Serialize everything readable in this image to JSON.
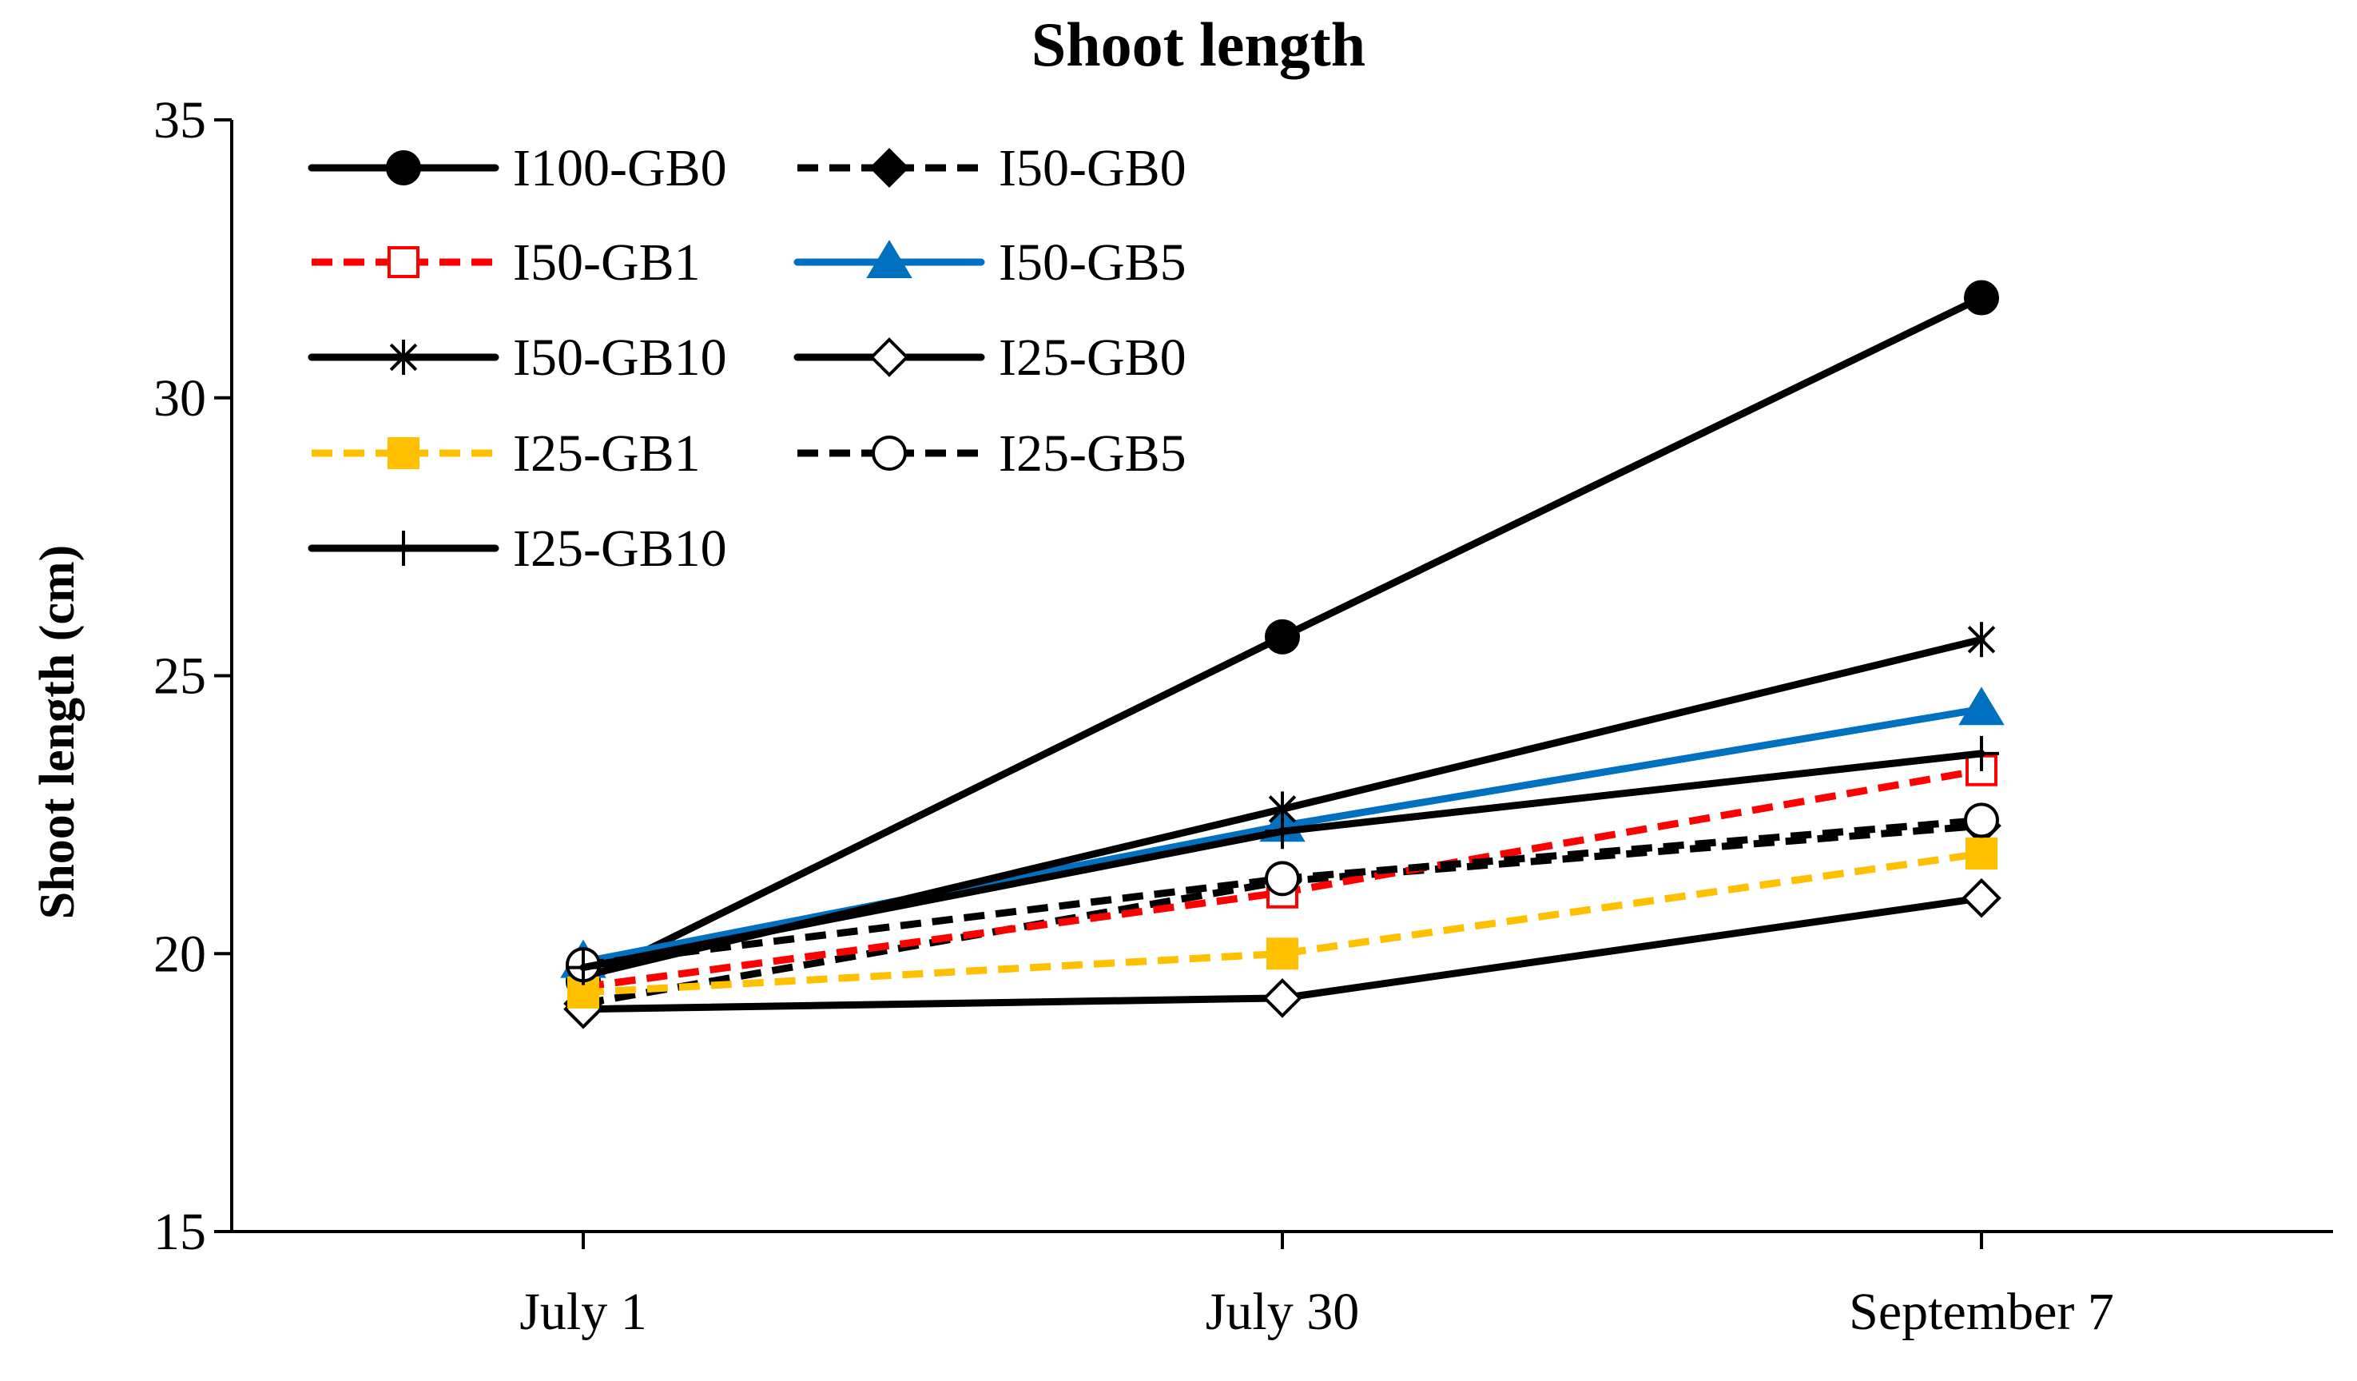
{
  "chart_data": {
    "type": "line",
    "title": "Shoot length",
    "xlabel": "",
    "ylabel": "Shoot length (cm)",
    "categories": [
      "July 1",
      "July 30",
      "September 7"
    ],
    "ylim": [
      15,
      35
    ],
    "yticks": [
      15,
      20,
      25,
      30,
      35
    ],
    "grid": false,
    "legend_position": "top-left",
    "series": [
      {
        "name": "I100-GB0",
        "values": [
          19.5,
          25.7,
          31.8
        ],
        "color": "#000000",
        "dash": "solid",
        "marker": "circle-filled"
      },
      {
        "name": "I50-GB0",
        "values": [
          19.1,
          21.3,
          22.3
        ],
        "color": "#000000",
        "dash": "dashed",
        "marker": "diamond-filled"
      },
      {
        "name": "I50-GB1",
        "values": [
          19.4,
          21.1,
          23.3
        ],
        "color": "#ff0000",
        "dash": "dashed",
        "marker": "square-open"
      },
      {
        "name": "I50-GB5",
        "values": [
          19.85,
          22.3,
          24.4
        ],
        "color": "#0070c0",
        "dash": "solid",
        "marker": "triangle-filled"
      },
      {
        "name": "I50-GB10",
        "values": [
          19.6,
          22.6,
          25.65
        ],
        "color": "#000000",
        "dash": "solid",
        "marker": "asterisk"
      },
      {
        "name": "I25-GB0",
        "values": [
          19.0,
          19.2,
          21.0
        ],
        "color": "#000000",
        "dash": "solid",
        "marker": "diamond-open"
      },
      {
        "name": "I25-GB1",
        "values": [
          19.3,
          20.0,
          21.8
        ],
        "color": "#ffc000",
        "dash": "dashed",
        "marker": "square-filled"
      },
      {
        "name": "I25-GB5",
        "values": [
          19.8,
          21.35,
          22.4
        ],
        "color": "#000000",
        "dash": "dashed",
        "marker": "circle-open"
      },
      {
        "name": "I25-GB10",
        "values": [
          19.75,
          22.2,
          23.6
        ],
        "color": "#000000",
        "dash": "solid",
        "marker": "plus"
      }
    ]
  }
}
